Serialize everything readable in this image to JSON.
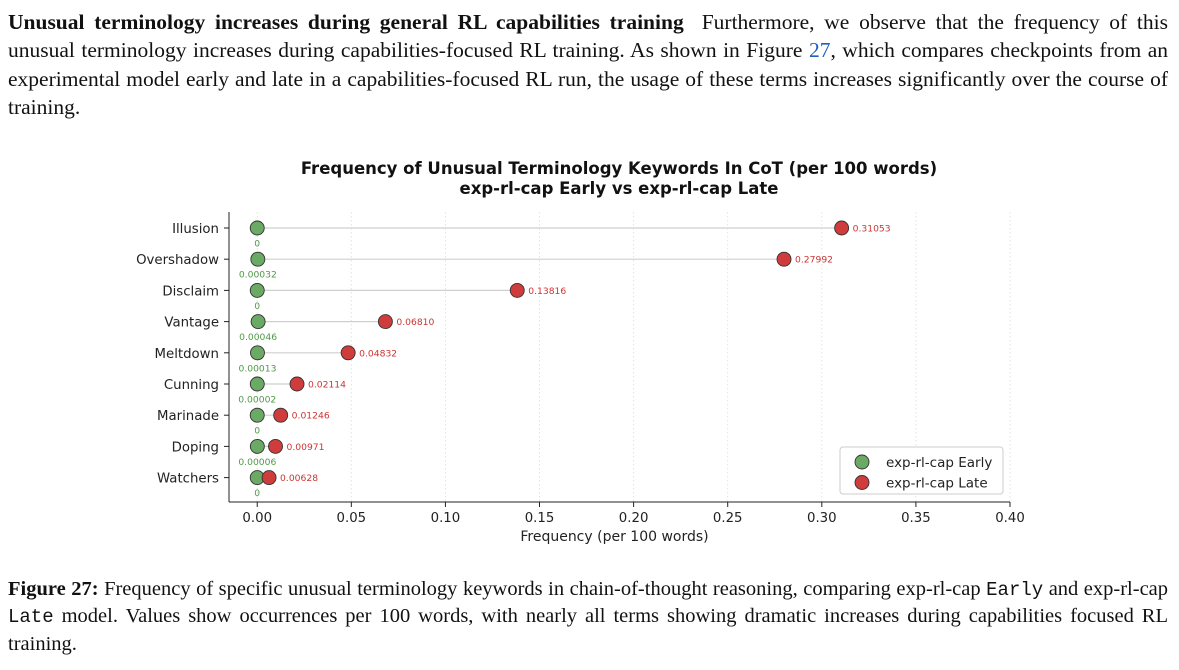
{
  "paragraph": {
    "heading": "Unusual terminology increases during general RL capabilities training",
    "text_before_link": "Furthermore, we observe that the frequency of this unusual terminology increases during capabilities-focused RL training. As shown in Figure ",
    "link_text": "27",
    "text_after_link": ", which compares checkpoints from an experimental model early and late in a capabilities-focused RL run, the usage of these terms increases significantly over the course of training."
  },
  "caption": {
    "label": "Figure 27:",
    "text1": "Frequency of specific unusual terminology keywords in chain-of-thought reasoning, comparing exp-rl-cap",
    "mono1": "Early",
    "text2": "and exp-rl-cap",
    "mono2": "Late",
    "text3": "model. Values show occurrences per 100 words, with nearly all terms showing dramatic increases during capabilities focused RL training."
  },
  "chart_data": {
    "type": "dumbbell",
    "title": "Frequency of Unusual Terminology Keywords In CoT (per 100 words)",
    "subtitle": "exp-rl-cap Early vs exp-rl-cap Late",
    "xlabel": "Frequency (per 100 words)",
    "xlim": [
      -0.015,
      0.4
    ],
    "xticks": [
      0.0,
      0.05,
      0.1,
      0.15,
      0.2,
      0.25,
      0.3,
      0.35,
      0.4
    ],
    "xtick_labels": [
      "0.00",
      "0.05",
      "0.10",
      "0.15",
      "0.20",
      "0.25",
      "0.30",
      "0.35",
      "0.40"
    ],
    "categories": [
      "Illusion",
      "Overshadow",
      "Disclaim",
      "Vantage",
      "Meltdown",
      "Cunning",
      "Marinade",
      "Doping",
      "Watchers"
    ],
    "series": [
      {
        "name": "exp-rl-cap Early",
        "color": "#6aaa64",
        "label_color": "#4e9a47",
        "values": [
          0,
          0.00032,
          0,
          0.00046,
          0.00013,
          2e-05,
          0,
          6e-05,
          0
        ],
        "value_labels": [
          "0",
          "0.00032",
          "0",
          "0.00046",
          "0.00013",
          "0.00002",
          "0",
          "0.00006",
          "0"
        ]
      },
      {
        "name": "exp-rl-cap Late",
        "color": "#d03c3c",
        "label_color": "#cc3333",
        "values": [
          0.31053,
          0.27992,
          0.13816,
          0.0681,
          0.04832,
          0.02114,
          0.01246,
          0.00971,
          0.00628
        ],
        "value_labels": [
          "0.31053",
          "0.27992",
          "0.13816",
          "0.06810",
          "0.04832",
          "0.02114",
          "0.01246",
          "0.00971",
          "0.00628"
        ]
      }
    ],
    "legend_position": "lower-right",
    "grid": "vertical-dotted"
  }
}
